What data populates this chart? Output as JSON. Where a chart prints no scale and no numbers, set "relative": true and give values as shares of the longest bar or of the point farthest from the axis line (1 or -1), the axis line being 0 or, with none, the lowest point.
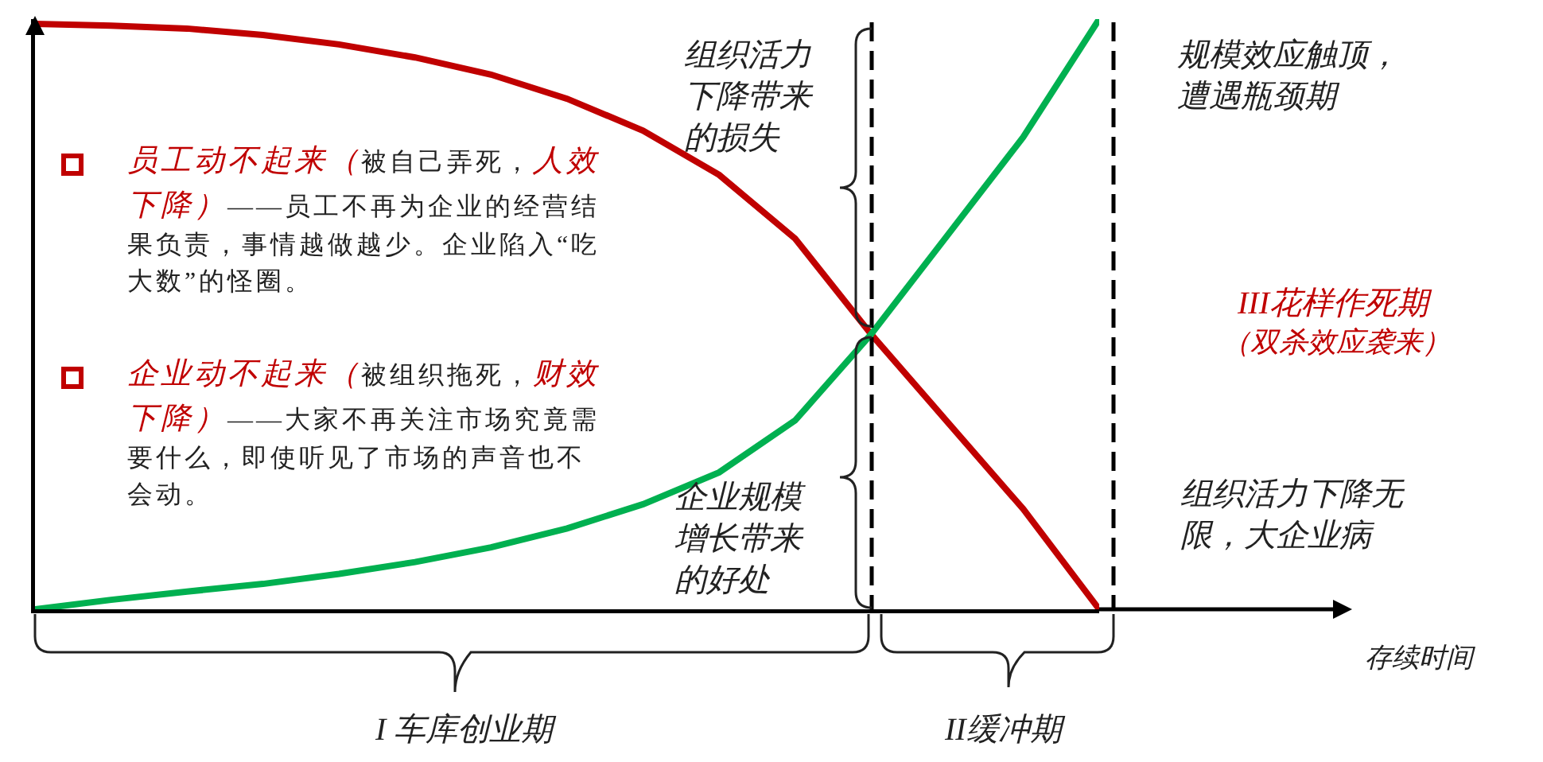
{
  "chart_data": {
    "type": "line",
    "relative": true,
    "marker": "none",
    "line_style": "solid",
    "categories": [
      null,
      null,
      null,
      null,
      null,
      null,
      null,
      null,
      null,
      null,
      null,
      null,
      null,
      null,
      null
    ],
    "series": [
      {
        "color": "#c00000",
        "values": [
          0.992,
          0.989,
          0.984,
          0.973,
          0.957,
          0.935,
          0.906,
          0.865,
          0.811,
          0.736,
          0.628,
          0.466,
          0.318,
          0.17,
          0
        ]
      },
      {
        "color": "#00b050",
        "values": [
          0,
          0.016,
          0.03,
          0.043,
          0.06,
          0.08,
          0.105,
          0.137,
          0.178,
          0.232,
          0.32,
          0.466,
          0.633,
          0.8,
          1
        ]
      }
    ],
    "annotations": [
      "员工动不起来（",
      "被自己弄死，",
      "人效下降）",
      "——员工不再为企业的经营结果负责，事情越做越少。企业陷入“吃大数”的怪圈。",
      "企业动不起来（",
      "被组织拖死，",
      "财效下降）",
      "——大家不再关注市场究竟需要什么，即使听见了市场的声音也不会动。",
      "组织活力下降带来的损失",
      "企业规模增长带来的好处",
      "规模效应触顶，遭遇瓶颈期",
      "III花样作死期",
      "（双杀效应袭来）",
      "组织活力下降无限，大企业病",
      "I 车库创业期",
      "II缓冲期",
      "存续时间"
    ]
  }
}
